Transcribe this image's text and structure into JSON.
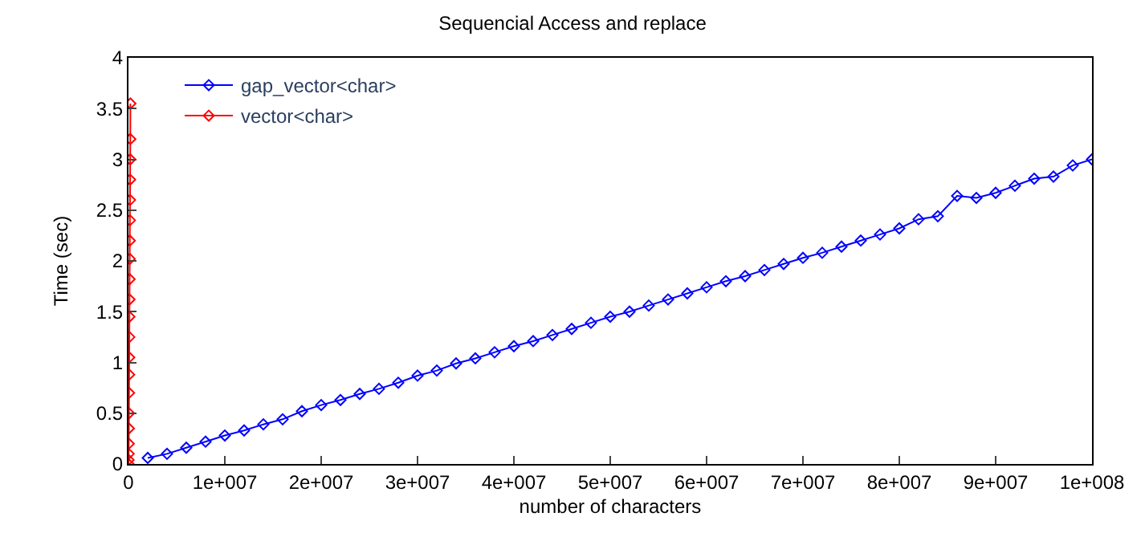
{
  "chart_data": {
    "type": "line",
    "title": "Sequencial Access and replace",
    "xlabel": "number of characters",
    "ylabel": "Time (sec)",
    "xlim": [
      0,
      100000000
    ],
    "ylim": [
      0,
      4
    ],
    "xticks": [
      0,
      {
        "value": 10000000,
        "label": "1e+007"
      },
      {
        "value": 20000000,
        "label": "2e+007"
      },
      {
        "value": 30000000,
        "label": "3e+007"
      },
      {
        "value": 40000000,
        "label": "4e+007"
      },
      {
        "value": 50000000,
        "label": "5e+007"
      },
      {
        "value": 60000000,
        "label": "6e+007"
      },
      {
        "value": 70000000,
        "label": "7e+007"
      },
      {
        "value": 80000000,
        "label": "8e+007"
      },
      {
        "value": 90000000,
        "label": "9e+007"
      },
      {
        "value": 100000000,
        "label": "1e+008"
      }
    ],
    "yticks": [
      0,
      0.5,
      1,
      1.5,
      2,
      2.5,
      3,
      3.5,
      4
    ],
    "legend": "top left",
    "marker": "diamond",
    "line_style": "solid",
    "series": [
      {
        "name": "gap_vector<char>",
        "color": "#0000ff",
        "x": [
          2000000,
          4000000,
          6000000,
          8000000,
          10000000,
          12000000,
          14000000,
          16000000,
          18000000,
          20000000,
          22000000,
          24000000,
          26000000,
          28000000,
          30000000,
          32000000,
          34000000,
          36000000,
          38000000,
          40000000,
          42000000,
          44000000,
          46000000,
          48000000,
          50000000,
          52000000,
          54000000,
          56000000,
          58000000,
          60000000,
          62000000,
          64000000,
          66000000,
          68000000,
          70000000,
          72000000,
          74000000,
          76000000,
          78000000,
          80000000,
          82000000,
          84000000,
          86000000,
          88000000,
          90000000,
          92000000,
          94000000,
          96000000,
          98000000,
          100000000
        ],
        "values": [
          0.06,
          0.1,
          0.16,
          0.22,
          0.28,
          0.33,
          0.39,
          0.44,
          0.52,
          0.58,
          0.63,
          0.69,
          0.74,
          0.8,
          0.87,
          0.92,
          0.99,
          1.04,
          1.1,
          1.16,
          1.21,
          1.27,
          1.33,
          1.39,
          1.45,
          1.5,
          1.56,
          1.62,
          1.68,
          1.74,
          1.8,
          1.85,
          1.91,
          1.97,
          2.03,
          2.08,
          2.14,
          2.2,
          2.26,
          2.32,
          2.41,
          2.44,
          2.64,
          2.62,
          2.67,
          2.74,
          2.81,
          2.83,
          2.94,
          3.0
        ]
      },
      {
        "name": "vector<char>",
        "color": "#ff0000",
        "x": [
          0,
          10000,
          20000,
          30000,
          40000,
          50000,
          60000,
          70000,
          80000,
          90000,
          100000,
          110000,
          120000,
          130000,
          140000,
          150000,
          160000,
          170000,
          180000,
          190000,
          200000
        ],
        "values": [
          0,
          0.04,
          0.1,
          0.2,
          0.35,
          0.5,
          0.7,
          0.88,
          1.05,
          1.25,
          1.45,
          1.62,
          1.82,
          2.02,
          2.2,
          2.4,
          2.6,
          2.8,
          3.0,
          3.2,
          3.55
        ]
      }
    ]
  }
}
